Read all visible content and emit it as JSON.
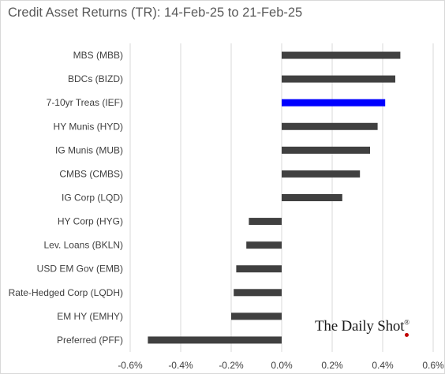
{
  "chart_data": {
    "type": "bar",
    "orientation": "horizontal",
    "title": "Credit Asset Returns (TR): 14-Feb-25 to 21-Feb-25",
    "categories": [
      "MBS (MBB)",
      "BDCs (BIZD)",
      "7-10yr Treas (IEF)",
      "HY Munis (HYD)",
      "IG Munis (MUB)",
      "CMBS (CMBS)",
      "IG Corp (LQD)",
      "HY Corp (HYG)",
      "Lev. Loans (BKLN)",
      "USD EM Gov (EMB)",
      "Rate-Hedged Corp (LQDH)",
      "EM HY (EMHY)",
      "Preferred (PFF)"
    ],
    "values": [
      0.0047,
      0.0045,
      0.0041,
      0.0038,
      0.0035,
      0.0031,
      0.0024,
      -0.0013,
      -0.0014,
      -0.0018,
      -0.0019,
      -0.002,
      -0.0053
    ],
    "highlight_category": "7-10yr Treas (IEF)",
    "xlim": [
      -0.006,
      0.006
    ],
    "xticks": [
      -0.006,
      -0.004,
      -0.002,
      0.0,
      0.002,
      0.004,
      0.006
    ],
    "xtick_labels": [
      "-0.6%",
      "-0.4%",
      "-0.2%",
      "0.0%",
      "0.2%",
      "0.4%",
      "0.6%"
    ],
    "xlabel": "",
    "ylabel": "",
    "grid": "vertical",
    "legend": "none",
    "colors": {
      "bar": "#404040",
      "highlight": "#0000ff",
      "grid": "#d9d9d9",
      "text": "#404040"
    }
  },
  "watermark": {
    "text": "The Daily Shot",
    "mark": "®"
  }
}
